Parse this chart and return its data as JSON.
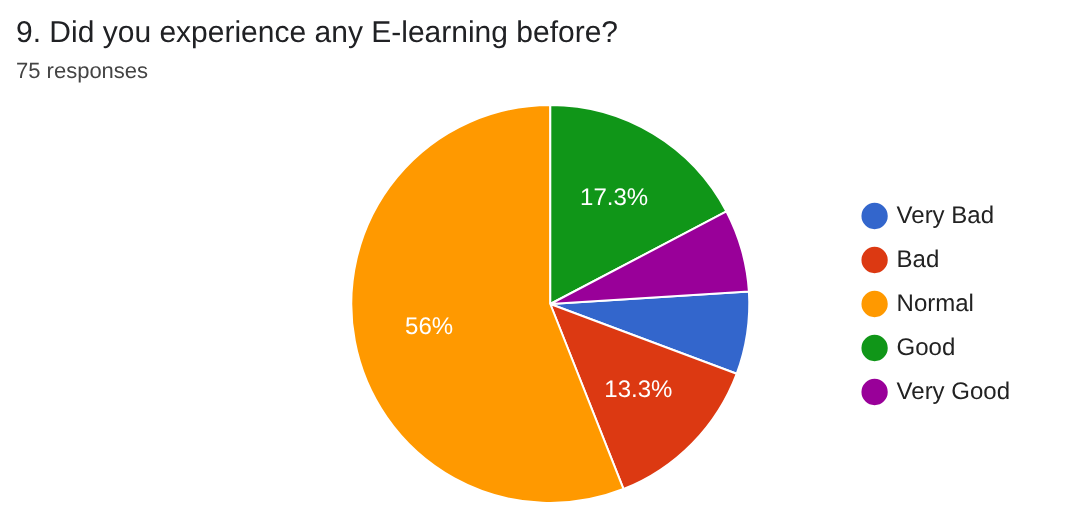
{
  "chart_data": {
    "type": "pie",
    "title": "9. Did you experience any E-learning before?",
    "subtitle": "75 responses",
    "categories": [
      "Very Bad",
      "Bad",
      "Normal",
      "Good",
      "Very Good"
    ],
    "values": [
      6.7,
      13.3,
      56,
      17.3,
      6.7
    ],
    "colors": [
      "#3366cc",
      "#dc3912",
      "#ff9900",
      "#109618",
      "#990099"
    ],
    "value_labels": [
      null,
      "13.3%",
      "56%",
      "17.3%",
      null
    ],
    "legend": "right"
  }
}
